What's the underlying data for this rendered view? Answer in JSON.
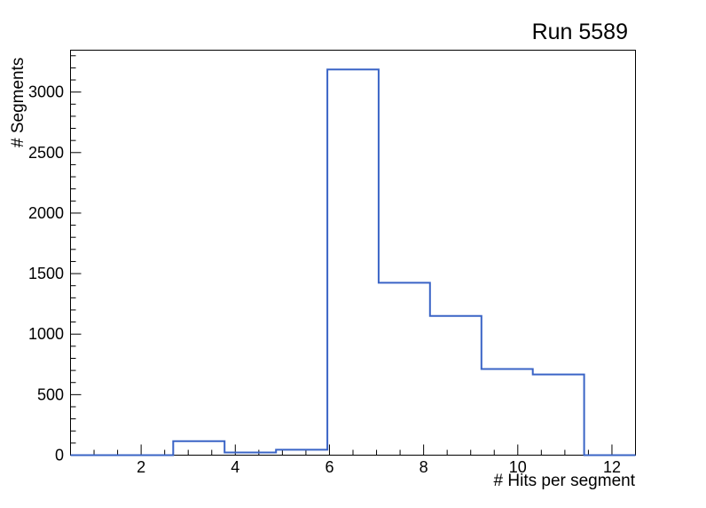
{
  "title": "Run 5589",
  "axes": {
    "x_label": "# Hits per segment",
    "y_label": "# Segments"
  },
  "chart_data": {
    "type": "histogram",
    "title": "Run 5589",
    "xlabel": "# Hits per segment",
    "ylabel": "# Segments",
    "xlim": [
      0.5,
      12.5
    ],
    "ylim": [
      0,
      3346
    ],
    "bin_edges": [
      0.5,
      1.591,
      2.682,
      3.773,
      4.864,
      5.955,
      7.045,
      8.136,
      9.227,
      10.318,
      11.409,
      12.5
    ],
    "counts": [
      0,
      0,
      115,
      22,
      45,
      3187,
      1424,
      1150,
      712,
      667,
      0
    ],
    "x_major_ticks": [
      2,
      4,
      6,
      8,
      10,
      12
    ],
    "x_minor_step": 0.5,
    "y_major_ticks": [
      0,
      500,
      1000,
      1500,
      2000,
      2500,
      3000
    ],
    "y_minor_step": 100,
    "line_color": "#3A64C6",
    "frame_color": "#000000",
    "grid": false,
    "legend": "none",
    "tick_direction": "in"
  }
}
